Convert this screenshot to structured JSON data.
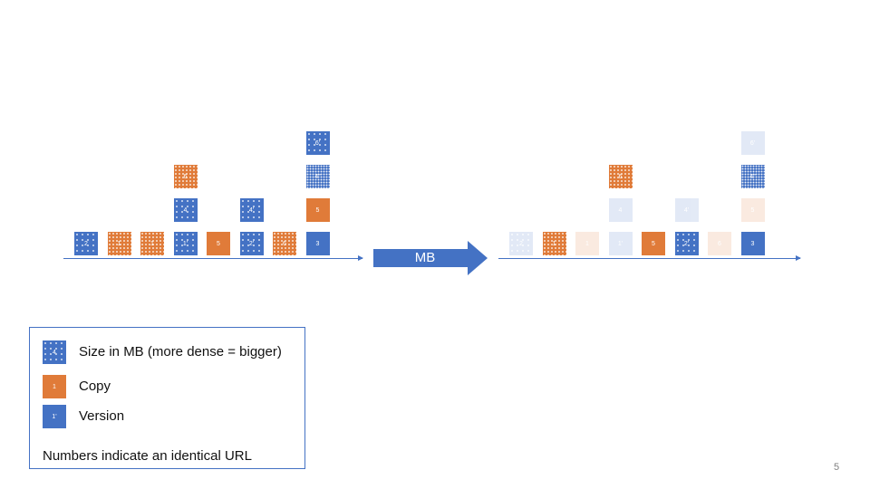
{
  "transform_label": "MB",
  "page_number": "5",
  "colors": {
    "blue": "#4472c4",
    "orange": "#e07b39"
  },
  "legend": {
    "items": [
      {
        "swatch_label": "4",
        "text": "Size in MB (more dense = bigger)"
      },
      {
        "swatch_label": "1",
        "text": "Copy"
      },
      {
        "swatch_label": "1'",
        "text": "Version"
      }
    ],
    "note": "Numbers indicate an identical URL"
  },
  "left_diagram": {
    "blocks": [
      {
        "label": "2",
        "color": "blue",
        "pattern": "dots-s",
        "col": 0,
        "row": 0
      },
      {
        "label": "1",
        "color": "orange",
        "pattern": "dots-m",
        "col": 1,
        "row": 0
      },
      {
        "label": "1",
        "color": "orange",
        "pattern": "dots-m",
        "col": 2,
        "row": 0
      },
      {
        "label": "1'",
        "color": "blue",
        "pattern": "dots-s",
        "col": 3,
        "row": 0
      },
      {
        "label": "4",
        "color": "blue",
        "pattern": "dots-s",
        "col": 3,
        "row": 1
      },
      {
        "label": "6",
        "color": "orange",
        "pattern": "dots-m",
        "col": 3,
        "row": 2
      },
      {
        "label": "5",
        "color": "orange",
        "pattern": "",
        "col": 4,
        "row": 0
      },
      {
        "label": "2'",
        "color": "blue",
        "pattern": "dots-s",
        "col": 5,
        "row": 0
      },
      {
        "label": "4'",
        "color": "blue",
        "pattern": "dots-s",
        "col": 5,
        "row": 1
      },
      {
        "label": "6",
        "color": "orange",
        "pattern": "dots-m",
        "col": 6,
        "row": 0
      },
      {
        "label": "3",
        "color": "blue",
        "pattern": "",
        "col": 7,
        "row": 0
      },
      {
        "label": "5",
        "color": "orange",
        "pattern": "",
        "col": 7,
        "row": 1
      },
      {
        "label": "4''",
        "color": "blue",
        "pattern": "dots-l",
        "col": 7,
        "row": 2
      },
      {
        "label": "6'",
        "color": "blue",
        "pattern": "dots-s",
        "col": 7,
        "row": 3
      }
    ]
  },
  "right_diagram": {
    "blocks": [
      {
        "label": "2",
        "color": "blue",
        "pattern": "dots-s",
        "col": 0,
        "row": 0,
        "faded": true
      },
      {
        "label": "1",
        "color": "orange",
        "pattern": "dots-m",
        "col": 1,
        "row": 0,
        "faded": false
      },
      {
        "label": "1",
        "color": "orange",
        "pattern": "",
        "col": 2,
        "row": 0,
        "faded": true
      },
      {
        "label": "1'",
        "color": "blue",
        "pattern": "",
        "col": 3,
        "row": 0,
        "faded": true
      },
      {
        "label": "4",
        "color": "blue",
        "pattern": "",
        "col": 3,
        "row": 1,
        "faded": true
      },
      {
        "label": "6",
        "color": "orange",
        "pattern": "dots-m",
        "col": 3,
        "row": 2,
        "faded": false
      },
      {
        "label": "5",
        "color": "orange",
        "pattern": "",
        "col": 4,
        "row": 0,
        "faded": false
      },
      {
        "label": "2'",
        "color": "blue",
        "pattern": "dots-s",
        "col": 5,
        "row": 0,
        "faded": false
      },
      {
        "label": "4'",
        "color": "blue",
        "pattern": "",
        "col": 5,
        "row": 1,
        "faded": true
      },
      {
        "label": "6",
        "color": "orange",
        "pattern": "",
        "col": 6,
        "row": 0,
        "faded": true
      },
      {
        "label": "3",
        "color": "blue",
        "pattern": "",
        "col": 7,
        "row": 0,
        "faded": false
      },
      {
        "label": "5",
        "color": "orange",
        "pattern": "",
        "col": 7,
        "row": 1,
        "faded": true
      },
      {
        "label": "4''",
        "color": "blue",
        "pattern": "dots-l",
        "col": 7,
        "row": 2,
        "faded": false
      },
      {
        "label": "6'",
        "color": "blue",
        "pattern": "",
        "col": 7,
        "row": 3,
        "faded": true
      }
    ]
  }
}
